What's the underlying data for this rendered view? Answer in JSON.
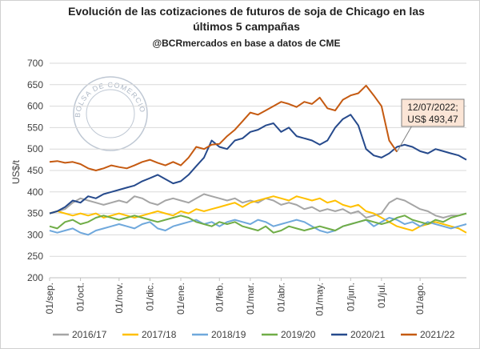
{
  "logo": "BOLSA DE COMERCIO DE ROSARIO",
  "chart_data": {
    "type": "line",
    "title": [
      "Evolución de las cotizaciones de futuros de soja de Chicago en las",
      "últimos 5 campañas"
    ],
    "subtitle": "@BCRmercados en base a datos de CME",
    "y_label": "US$/t",
    "annotation": [
      "12/07/2022;",
      "US$ 493,47"
    ],
    "ylim": [
      200,
      700
    ],
    "yticks": [
      200,
      250,
      300,
      350,
      400,
      450,
      500,
      550,
      600,
      650,
      700
    ],
    "grid": true,
    "categories": [
      "01/sep.",
      null,
      null,
      null,
      "01/oct.",
      null,
      null,
      null,
      null,
      "01/nov.",
      null,
      null,
      null,
      "01/dic.",
      null,
      null,
      null,
      "01/ene.",
      null,
      null,
      null,
      null,
      "01/feb.",
      null,
      null,
      null,
      "01/mar.",
      null,
      null,
      null,
      "01/abr.",
      null,
      null,
      null,
      null,
      "01/may.",
      null,
      null,
      null,
      "01/jun.",
      null,
      null,
      null,
      "01/jul.",
      null,
      null,
      null,
      null,
      "01/ago.",
      null,
      null,
      null,
      null,
      null,
      null
    ],
    "series": [
      {
        "name": "2016/17",
        "color": "#a5a5a5",
        "values": [
          350,
          355,
          360,
          375,
          385,
          380,
          375,
          370,
          375,
          380,
          375,
          390,
          385,
          375,
          370,
          380,
          385,
          380,
          375,
          385,
          395,
          390,
          385,
          380,
          385,
          375,
          380,
          375,
          385,
          380,
          370,
          375,
          370,
          360,
          365,
          355,
          360,
          355,
          360,
          350,
          355,
          340,
          345,
          350,
          375,
          385,
          380,
          370,
          360,
          355,
          345,
          340,
          345,
          345,
          350
        ]
      },
      {
        "name": "2017/18",
        "color": "#ffc000",
        "values": [
          350,
          355,
          350,
          345,
          350,
          345,
          350,
          340,
          345,
          350,
          345,
          340,
          345,
          350,
          355,
          350,
          345,
          355,
          350,
          360,
          355,
          360,
          365,
          370,
          375,
          365,
          375,
          380,
          385,
          390,
          385,
          380,
          390,
          385,
          380,
          385,
          375,
          380,
          370,
          365,
          370,
          355,
          350,
          340,
          330,
          320,
          315,
          310,
          320,
          325,
          330,
          325,
          320,
          315,
          305
        ]
      },
      {
        "name": "2018/19",
        "color": "#6fa8dc",
        "values": [
          310,
          305,
          310,
          315,
          305,
          300,
          310,
          315,
          320,
          325,
          320,
          315,
          325,
          330,
          315,
          310,
          320,
          325,
          330,
          335,
          325,
          330,
          320,
          330,
          335,
          330,
          325,
          335,
          330,
          320,
          325,
          330,
          335,
          330,
          320,
          310,
          305,
          310,
          320,
          325,
          330,
          335,
          320,
          330,
          340,
          335,
          325,
          330,
          320,
          330,
          325,
          320,
          315,
          320,
          325
        ]
      },
      {
        "name": "2019/20",
        "color": "#70ad47",
        "values": [
          320,
          315,
          330,
          335,
          325,
          330,
          340,
          345,
          340,
          335,
          340,
          345,
          340,
          335,
          330,
          335,
          340,
          345,
          340,
          330,
          325,
          320,
          330,
          325,
          330,
          320,
          315,
          310,
          320,
          305,
          310,
          320,
          315,
          310,
          315,
          320,
          315,
          310,
          320,
          325,
          330,
          335,
          330,
          325,
          330,
          340,
          345,
          335,
          330,
          325,
          335,
          330,
          340,
          345,
          350
        ]
      },
      {
        "name": "2020/21",
        "color": "#264a8c",
        "values": [
          350,
          355,
          365,
          380,
          375,
          390,
          385,
          395,
          400,
          405,
          410,
          415,
          425,
          432,
          440,
          430,
          420,
          425,
          440,
          460,
          480,
          520,
          505,
          500,
          520,
          525,
          540,
          545,
          555,
          560,
          540,
          550,
          530,
          525,
          520,
          510,
          520,
          550,
          570,
          580,
          555,
          500,
          485,
          480,
          490,
          505,
          510,
          505,
          495,
          490,
          500,
          495,
          490,
          485,
          475
        ]
      },
      {
        "name": "2021/22",
        "color": "#c55a11",
        "values": [
          470,
          472,
          468,
          470,
          465,
          455,
          450,
          455,
          462,
          458,
          455,
          462,
          470,
          475,
          468,
          462,
          470,
          462,
          480,
          505,
          500,
          510,
          512,
          530,
          545,
          565,
          585,
          580,
          590,
          600,
          610,
          605,
          598,
          610,
          605,
          620,
          595,
          590,
          615,
          625,
          630,
          648,
          625,
          600,
          520,
          493.47,
          null,
          null,
          null,
          null,
          null,
          null,
          null,
          null,
          null
        ]
      }
    ]
  }
}
